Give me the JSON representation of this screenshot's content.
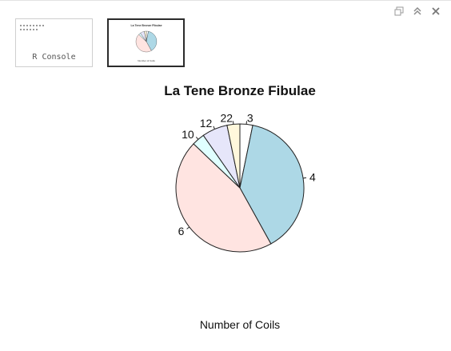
{
  "window": {
    "controls": [
      {
        "name": "restore",
        "icon": "restore-icon"
      },
      {
        "name": "maximize",
        "icon": "chevron-up-double-icon"
      },
      {
        "name": "close",
        "icon": "close-icon"
      }
    ]
  },
  "thumbnails": {
    "console_label": "R Console",
    "plot_thumb_title": "La Tene Bronze Fibulae",
    "plot_thumb_xlabel": "Number of Coils"
  },
  "colors": {
    "slice_fills": [
      "#ffffff",
      "#add8e6",
      "#ffe4e1",
      "#e0ffff",
      "#e6e6fa",
      "#fff8dc"
    ],
    "stroke": "#222222"
  },
  "chart_data": {
    "type": "pie",
    "title": "La Tene Bronze Fibulae",
    "xlabel": "Number of Coils",
    "start_angle_deg": 90,
    "direction": "clockwise",
    "slices": [
      {
        "label": "3",
        "value": 1
      },
      {
        "label": "4",
        "value": 12
      },
      {
        "label": "6",
        "value": 14
      },
      {
        "label": "10",
        "value": 1
      },
      {
        "label": "12",
        "value": 2
      },
      {
        "label": "22",
        "value": 1
      }
    ]
  }
}
